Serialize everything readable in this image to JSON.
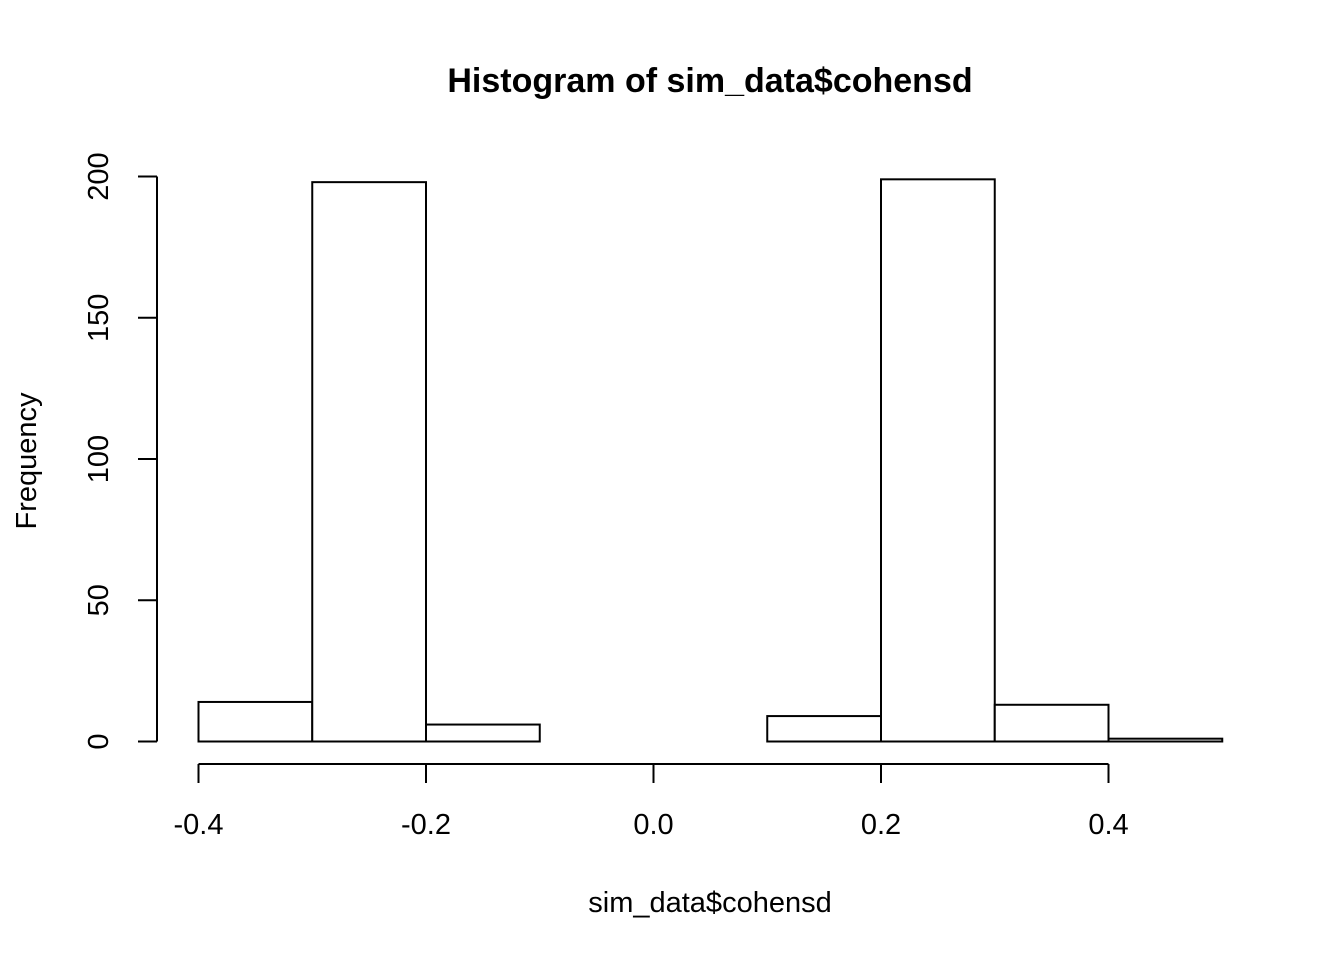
{
  "chart_data": {
    "type": "bar",
    "title": "Histogram of sim_data$cohensd",
    "xlabel": "sim_data$cohensd",
    "ylabel": "Frequency",
    "bins": [
      {
        "from": -0.4,
        "to": -0.3,
        "count": 14
      },
      {
        "from": -0.3,
        "to": -0.2,
        "count": 198
      },
      {
        "from": -0.2,
        "to": -0.1,
        "count": 6
      },
      {
        "from": -0.1,
        "to": 0.0,
        "count": 0
      },
      {
        "from": 0.0,
        "to": 0.1,
        "count": 0
      },
      {
        "from": 0.1,
        "to": 0.2,
        "count": 9
      },
      {
        "from": 0.2,
        "to": 0.3,
        "count": 199
      },
      {
        "from": 0.3,
        "to": 0.4,
        "count": 13
      },
      {
        "from": 0.4,
        "to": 0.5,
        "count": 1
      }
    ],
    "x_ticks": [
      -0.4,
      -0.2,
      0.0,
      0.2,
      0.4
    ],
    "x_tick_labels": [
      "-0.4",
      "-0.2",
      "0.0",
      "0.2",
      "0.4"
    ],
    "y_ticks": [
      0,
      50,
      100,
      150,
      200
    ],
    "y_tick_labels": [
      "0",
      "50",
      "100",
      "150",
      "200"
    ],
    "xlim": [
      -0.4,
      0.5
    ],
    "ylim": [
      0,
      200
    ],
    "grid": false,
    "colors": {
      "bar_fill": "#ffffff",
      "bar_stroke": "#000000"
    }
  }
}
